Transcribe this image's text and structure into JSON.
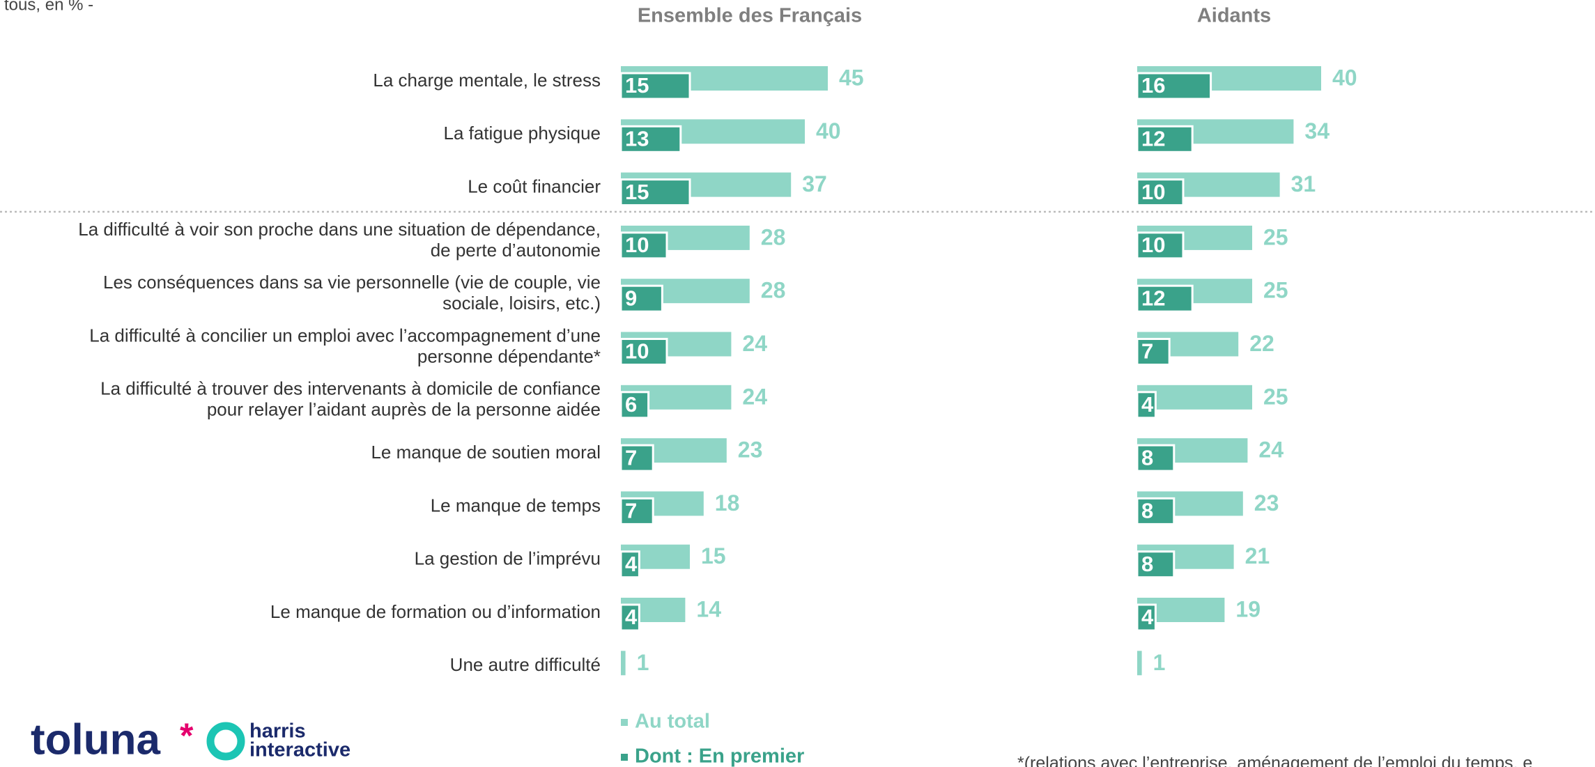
{
  "chart_data": {
    "type": "bar",
    "subtitle": "à tous, en % -",
    "footnote": "*(relations avec l’entreprise, aménagement de l’emploi du temps, e",
    "logo": [
      "toluna",
      "harris",
      "interactive"
    ],
    "categories": [
      [
        "La charge mentale, le stress"
      ],
      [
        "La fatigue physique"
      ],
      [
        "Le coût financier"
      ],
      [
        "La difficulté à voir son proche dans une situation de dépendance,",
        "de perte d’autonomie"
      ],
      [
        "Les conséquences dans sa vie personnelle (vie de couple, vie",
        "sociale, loisirs, etc.)"
      ],
      [
        "La difficulté à concilier un emploi avec l’accompagnement d’une",
        "personne dépendante*"
      ],
      [
        "La difficulté à trouver des intervenants à domicile de confiance",
        "pour relayer l’aidant auprès de la personne aidée"
      ],
      [
        "Le manque de soutien moral"
      ],
      [
        "Le manque de temps"
      ],
      [
        "La gestion de l’imprévu"
      ],
      [
        "Le manque de formation ou d’information"
      ],
      [
        "Une autre difficulté"
      ]
    ],
    "series_names": [
      "Au total",
      "Dont : En premier"
    ],
    "colors": [
      "#8fd6c6",
      "#3aa28a"
    ],
    "xlim": [
      0,
      100
    ],
    "panels": [
      {
        "title": "Ensemble des Français",
        "series": [
          {
            "values": [
              45,
              40,
              37,
              28,
              28,
              24,
              24,
              23,
              18,
              15,
              14,
              1
            ]
          },
          {
            "values": [
              15,
              13,
              15,
              10,
              9,
              10,
              6,
              7,
              7,
              4,
              4,
              null
            ]
          }
        ]
      },
      {
        "title": "Aidants",
        "series": [
          {
            "values": [
              40,
              34,
              31,
              25,
              25,
              22,
              25,
              24,
              23,
              21,
              19,
              1
            ]
          },
          {
            "values": [
              16,
              12,
              10,
              10,
              12,
              7,
              4,
              8,
              8,
              8,
              4,
              null
            ]
          }
        ]
      }
    ]
  }
}
